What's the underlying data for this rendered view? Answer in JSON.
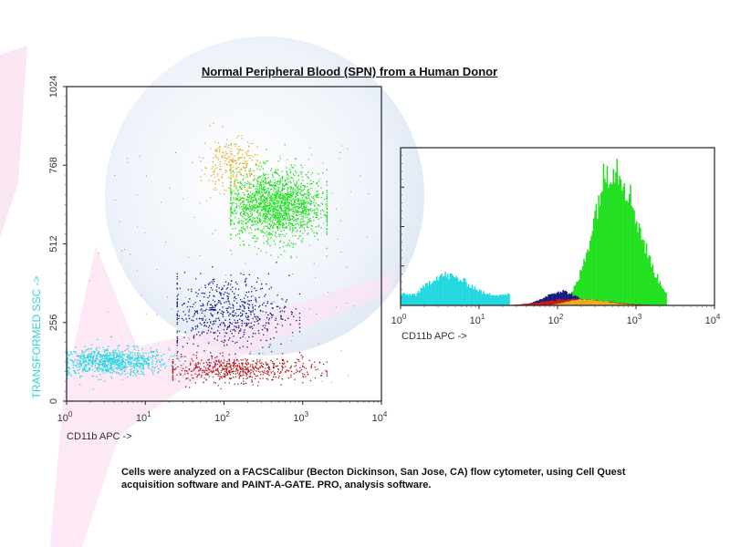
{
  "title": "Normal Peripheral Blood (SPN) from a Human Donor",
  "caption": {
    "line1": "Cells were analyzed on a FACSCalibur (Becton Dickinson, San Jose, CA) flow cytometer, using Cell Quest",
    "line2": "acquisition software and PAINT-A-GATE. PRO, analysis software."
  },
  "chart_data": [
    {
      "type": "scatter",
      "xlabel": "CD11b APC ->",
      "ylabel": "TRANSFORMED SSC ->",
      "xscale": "log",
      "xlim": [
        1,
        10000
      ],
      "ylim": [
        0,
        1024
      ],
      "xticks": [
        {
          "base": "10",
          "exp": "0"
        },
        {
          "base": "10",
          "exp": "1"
        },
        {
          "base": "10",
          "exp": "2"
        },
        {
          "base": "10",
          "exp": "3"
        },
        {
          "base": "10",
          "exp": "4"
        }
      ],
      "yticks": [
        "0",
        "256",
        "512",
        "768",
        "1024"
      ],
      "grid": false,
      "populations": [
        {
          "color": "#22d8e0",
          "x_center": 3.5,
          "x_range": [
            1,
            30
          ],
          "y_center": 130,
          "y_spread": 22,
          "count": 900
        },
        {
          "color": "#b01818",
          "x_center": 150,
          "x_range": [
            22,
            2000
          ],
          "y_center": 105,
          "y_spread": 20,
          "count": 600
        },
        {
          "color": "#101a80",
          "x_center": 110,
          "x_range": [
            25,
            900
          ],
          "y_center": 290,
          "y_spread": 60,
          "count": 600
        },
        {
          "color": "#20e020",
          "x_center": 450,
          "x_range": [
            120,
            2000
          ],
          "y_center": 640,
          "y_spread": 55,
          "count": 1800
        },
        {
          "color": "#e8b020",
          "x_center": 120,
          "x_range": [
            50,
            260
          ],
          "y_center": 770,
          "y_spread": 45,
          "count": 250
        }
      ]
    },
    {
      "type": "bar",
      "subtype": "histogram",
      "xlabel": "CD11b APC ->",
      "xscale": "log",
      "xlim": [
        1,
        10000
      ],
      "xticks": [
        {
          "base": "10",
          "exp": "0"
        },
        {
          "base": "10",
          "exp": "1"
        },
        {
          "base": "10",
          "exp": "2"
        },
        {
          "base": "10",
          "exp": "3"
        },
        {
          "base": "10",
          "exp": "4"
        }
      ],
      "ylim": [
        0,
        100
      ],
      "series": [
        {
          "color": "#22d8e0",
          "peak_x": 3.5,
          "x_range": [
            1,
            25
          ],
          "peak_height": 19
        },
        {
          "color": "#20e020",
          "peak_x": 500,
          "x_range": [
            150,
            2500
          ],
          "peak_height": 89
        },
        {
          "color": "#101a80",
          "peak_x": 110,
          "x_range": [
            40,
            300
          ],
          "peak_height": 9
        },
        {
          "color": "#e8b020",
          "peak_x": 200,
          "x_range": [
            80,
            1000
          ],
          "peak_height": 4
        },
        {
          "color": "#c81818",
          "peak_x": 150,
          "x_range": [
            25,
            1500
          ],
          "peak_height": 4
        }
      ]
    }
  ]
}
